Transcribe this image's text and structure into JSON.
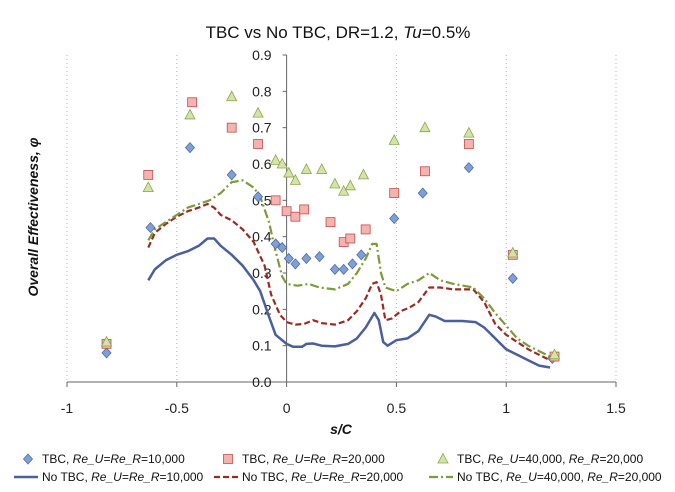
{
  "chart_data": {
    "type": "scatter",
    "title": {
      "prefix": "TBC vs No TBC, DR=1.2, ",
      "tu_label": "Tu",
      "tu_value": "=0.5%"
    },
    "xlabel": "s/C",
    "ylabel": "Overall Effectiveness, φ",
    "xlim": [
      -1,
      1.5
    ],
    "ylim": [
      0,
      0.9
    ],
    "x_ticks": [
      "-1",
      "-0.5",
      "0",
      "0.5",
      "1",
      "1.5"
    ],
    "y_ticks": [
      "0.0",
      "0.1",
      "0.2",
      "0.3",
      "0.4",
      "0.5",
      "0.6",
      "0.7",
      "0.8",
      "0.9"
    ],
    "grid": "vertical-dotted",
    "legend_position": "bottom",
    "series": [
      {
        "name": "TBC, Re_U=Re_R=10,000",
        "legend": {
          "prefix": "TBC, ",
          "italic": "Re_U=Re_R",
          "suffix": "=10,000"
        },
        "kind": "marker",
        "marker": "diamond",
        "color": "#7f9fd6",
        "stroke": "#4f6fa6",
        "points": [
          [
            -0.82,
            0.08
          ],
          [
            -0.62,
            0.425
          ],
          [
            -0.44,
            0.645
          ],
          [
            -0.25,
            0.57
          ],
          [
            -0.13,
            0.51
          ],
          [
            -0.05,
            0.38
          ],
          [
            -0.02,
            0.37
          ],
          [
            0.01,
            0.34
          ],
          [
            0.04,
            0.325
          ],
          [
            0.09,
            0.34
          ],
          [
            0.15,
            0.345
          ],
          [
            0.22,
            0.31
          ],
          [
            0.26,
            0.31
          ],
          [
            0.3,
            0.325
          ],
          [
            0.34,
            0.35
          ],
          [
            0.49,
            0.45
          ],
          [
            0.62,
            0.52
          ],
          [
            0.83,
            0.59
          ],
          [
            1.03,
            0.285
          ],
          [
            1.21,
            0.065
          ]
        ]
      },
      {
        "name": "TBC, Re_U=Re_R=20,000",
        "legend": {
          "prefix": "TBC, ",
          "italic": "Re_U=Re_R",
          "suffix": "=20,000"
        },
        "kind": "marker",
        "marker": "square",
        "color": "#f4b2b0",
        "stroke": "#c0504d",
        "points": [
          [
            -0.82,
            0.105
          ],
          [
            -0.63,
            0.57
          ],
          [
            -0.43,
            0.77
          ],
          [
            -0.25,
            0.7
          ],
          [
            -0.13,
            0.655
          ],
          [
            -0.05,
            0.5
          ],
          [
            0.0,
            0.47
          ],
          [
            0.04,
            0.455
          ],
          [
            0.08,
            0.475
          ],
          [
            0.2,
            0.44
          ],
          [
            0.26,
            0.385
          ],
          [
            0.29,
            0.395
          ],
          [
            0.36,
            0.42
          ],
          [
            0.49,
            0.52
          ],
          [
            0.63,
            0.58
          ],
          [
            0.83,
            0.655
          ],
          [
            1.03,
            0.35
          ],
          [
            1.22,
            0.07
          ]
        ]
      },
      {
        "name": "TBC, Re_U=40,000, Re_R=20,000",
        "legend": {
          "prefix": "TBC, ",
          "italic": "Re_U",
          "suffix": "=40,000, ",
          "italic2": "Re_R",
          "suffix2": "=20,000"
        },
        "kind": "marker",
        "marker": "triangle",
        "color": "#d4e3a8",
        "stroke": "#8aa64c",
        "points": [
          [
            -0.82,
            0.11
          ],
          [
            -0.63,
            0.535
          ],
          [
            -0.44,
            0.735
          ],
          [
            -0.25,
            0.785
          ],
          [
            -0.13,
            0.74
          ],
          [
            -0.05,
            0.61
          ],
          [
            -0.02,
            0.6
          ],
          [
            0.01,
            0.575
          ],
          [
            0.04,
            0.555
          ],
          [
            0.09,
            0.585
          ],
          [
            0.16,
            0.585
          ],
          [
            0.22,
            0.545
          ],
          [
            0.26,
            0.525
          ],
          [
            0.29,
            0.54
          ],
          [
            0.35,
            0.57
          ],
          [
            0.49,
            0.665
          ],
          [
            0.63,
            0.7
          ],
          [
            0.83,
            0.685
          ],
          [
            1.03,
            0.355
          ],
          [
            1.22,
            0.075
          ]
        ]
      },
      {
        "name": "No TBC, Re_U=Re_R=10,000",
        "legend": {
          "prefix": "No TBC, ",
          "italic": "Re_U=Re_R",
          "suffix": "=10,000"
        },
        "kind": "line",
        "style": "solid",
        "color": "#4a5f9c",
        "width": 2.5,
        "points": [
          [
            -0.63,
            0.28
          ],
          [
            -0.6,
            0.31
          ],
          [
            -0.55,
            0.335
          ],
          [
            -0.5,
            0.35
          ],
          [
            -0.45,
            0.36
          ],
          [
            -0.4,
            0.375
          ],
          [
            -0.36,
            0.395
          ],
          [
            -0.33,
            0.395
          ],
          [
            -0.3,
            0.375
          ],
          [
            -0.25,
            0.35
          ],
          [
            -0.2,
            0.32
          ],
          [
            -0.15,
            0.28
          ],
          [
            -0.12,
            0.25
          ],
          [
            -0.08,
            0.18
          ],
          [
            -0.05,
            0.13
          ],
          [
            0.0,
            0.105
          ],
          [
            0.03,
            0.097
          ],
          [
            0.07,
            0.097
          ],
          [
            0.09,
            0.105
          ],
          [
            0.12,
            0.106
          ],
          [
            0.16,
            0.1
          ],
          [
            0.22,
            0.098
          ],
          [
            0.28,
            0.105
          ],
          [
            0.32,
            0.12
          ],
          [
            0.36,
            0.15
          ],
          [
            0.39,
            0.18
          ],
          [
            0.4,
            0.19
          ],
          [
            0.42,
            0.17
          ],
          [
            0.44,
            0.11
          ],
          [
            0.46,
            0.1
          ],
          [
            0.5,
            0.115
          ],
          [
            0.55,
            0.12
          ],
          [
            0.6,
            0.14
          ],
          [
            0.65,
            0.185
          ],
          [
            0.68,
            0.18
          ],
          [
            0.72,
            0.168
          ],
          [
            0.8,
            0.168
          ],
          [
            0.86,
            0.165
          ],
          [
            0.9,
            0.15
          ],
          [
            0.95,
            0.12
          ],
          [
            1.0,
            0.09
          ],
          [
            1.05,
            0.075
          ],
          [
            1.1,
            0.06
          ],
          [
            1.15,
            0.045
          ],
          [
            1.2,
            0.04
          ]
        ]
      },
      {
        "name": "No TBC, Re_U=Re_R=20,000",
        "legend": {
          "prefix": "No TBC, ",
          "italic": "Re_U=Re_R",
          "suffix": "=20,000"
        },
        "kind": "line",
        "style": "dashed",
        "color": "#9b2a22",
        "width": 2.2,
        "points": [
          [
            -0.63,
            0.37
          ],
          [
            -0.6,
            0.41
          ],
          [
            -0.55,
            0.435
          ],
          [
            -0.5,
            0.455
          ],
          [
            -0.45,
            0.47
          ],
          [
            -0.4,
            0.48
          ],
          [
            -0.36,
            0.49
          ],
          [
            -0.33,
            0.48
          ],
          [
            -0.3,
            0.46
          ],
          [
            -0.25,
            0.445
          ],
          [
            -0.2,
            0.42
          ],
          [
            -0.15,
            0.385
          ],
          [
            -0.1,
            0.32
          ],
          [
            -0.07,
            0.24
          ],
          [
            -0.03,
            0.185
          ],
          [
            0.0,
            0.165
          ],
          [
            0.04,
            0.158
          ],
          [
            0.08,
            0.16
          ],
          [
            0.12,
            0.17
          ],
          [
            0.16,
            0.162
          ],
          [
            0.22,
            0.158
          ],
          [
            0.28,
            0.17
          ],
          [
            0.32,
            0.195
          ],
          [
            0.36,
            0.23
          ],
          [
            0.39,
            0.27
          ],
          [
            0.41,
            0.275
          ],
          [
            0.43,
            0.24
          ],
          [
            0.45,
            0.17
          ],
          [
            0.48,
            0.175
          ],
          [
            0.52,
            0.195
          ],
          [
            0.56,
            0.205
          ],
          [
            0.6,
            0.22
          ],
          [
            0.65,
            0.26
          ],
          [
            0.7,
            0.26
          ],
          [
            0.76,
            0.255
          ],
          [
            0.85,
            0.255
          ],
          [
            0.9,
            0.22
          ],
          [
            0.95,
            0.16
          ],
          [
            1.0,
            0.13
          ],
          [
            1.05,
            0.11
          ],
          [
            1.1,
            0.09
          ],
          [
            1.15,
            0.075
          ],
          [
            1.2,
            0.06
          ]
        ]
      },
      {
        "name": "No TBC, Re_U=40,000, Re_R=20,000",
        "legend": {
          "prefix": "No TBC, ",
          "italic": "Re_U",
          "suffix": "=40,000, ",
          "italic2": "Re_R",
          "suffix2": "=20,000"
        },
        "kind": "line",
        "style": "dashdot",
        "color": "#7f9a3a",
        "width": 2.2,
        "points": [
          [
            -0.63,
            0.39
          ],
          [
            -0.6,
            0.42
          ],
          [
            -0.55,
            0.44
          ],
          [
            -0.5,
            0.46
          ],
          [
            -0.45,
            0.48
          ],
          [
            -0.4,
            0.49
          ],
          [
            -0.35,
            0.5
          ],
          [
            -0.3,
            0.52
          ],
          [
            -0.25,
            0.55
          ],
          [
            -0.2,
            0.555
          ],
          [
            -0.15,
            0.535
          ],
          [
            -0.12,
            0.51
          ],
          [
            -0.08,
            0.44
          ],
          [
            -0.05,
            0.36
          ],
          [
            -0.02,
            0.29
          ],
          [
            0.0,
            0.27
          ],
          [
            0.05,
            0.265
          ],
          [
            0.1,
            0.27
          ],
          [
            0.15,
            0.26
          ],
          [
            0.22,
            0.255
          ],
          [
            0.28,
            0.27
          ],
          [
            0.32,
            0.3
          ],
          [
            0.36,
            0.34
          ],
          [
            0.39,
            0.38
          ],
          [
            0.41,
            0.38
          ],
          [
            0.43,
            0.3
          ],
          [
            0.45,
            0.26
          ],
          [
            0.5,
            0.25
          ],
          [
            0.55,
            0.27
          ],
          [
            0.6,
            0.28
          ],
          [
            0.65,
            0.3
          ],
          [
            0.7,
            0.28
          ],
          [
            0.76,
            0.27
          ],
          [
            0.85,
            0.26
          ],
          [
            0.9,
            0.23
          ],
          [
            0.95,
            0.19
          ],
          [
            1.0,
            0.155
          ],
          [
            1.05,
            0.12
          ],
          [
            1.1,
            0.1
          ],
          [
            1.15,
            0.085
          ],
          [
            1.2,
            0.07
          ]
        ]
      }
    ]
  }
}
